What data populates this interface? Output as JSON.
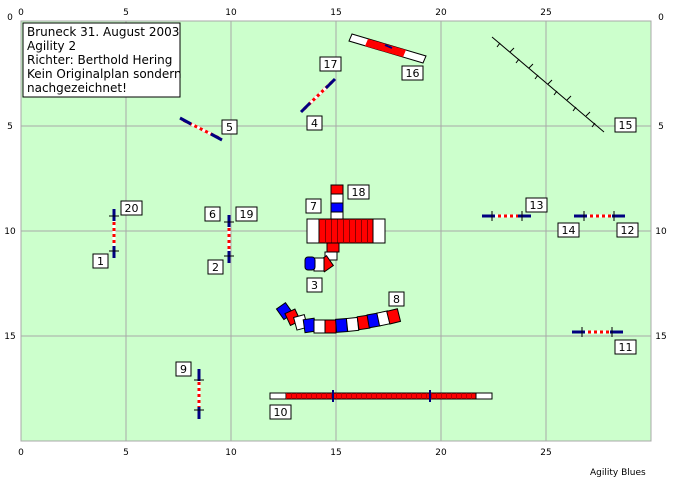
{
  "field": {
    "background": "#ccffcc",
    "grid_color": "#a8a8a8",
    "x_ticks": [
      "0",
      "5",
      "10",
      "15",
      "20",
      "25"
    ],
    "y_ticks": [
      "0",
      "5",
      "10",
      "15"
    ]
  },
  "info": {
    "lines": [
      "Bruneck 31. August 2003",
      "Agility 2",
      "Richter: Berthold Hering",
      "Kein Originalplan sondern",
      "nachgezeichnet!"
    ]
  },
  "obstacles": {
    "labels": [
      "1",
      "2",
      "3",
      "4",
      "5",
      "6",
      "7",
      "8",
      "9",
      "10",
      "11",
      "12",
      "13",
      "14",
      "15",
      "16",
      "17",
      "18",
      "19",
      "20"
    ]
  },
  "colors": {
    "red": "#ff0000",
    "blue": "#0000ff",
    "white": "#ffffff",
    "navy": "#000080"
  },
  "footer": {
    "brand": "Agility Blues"
  }
}
